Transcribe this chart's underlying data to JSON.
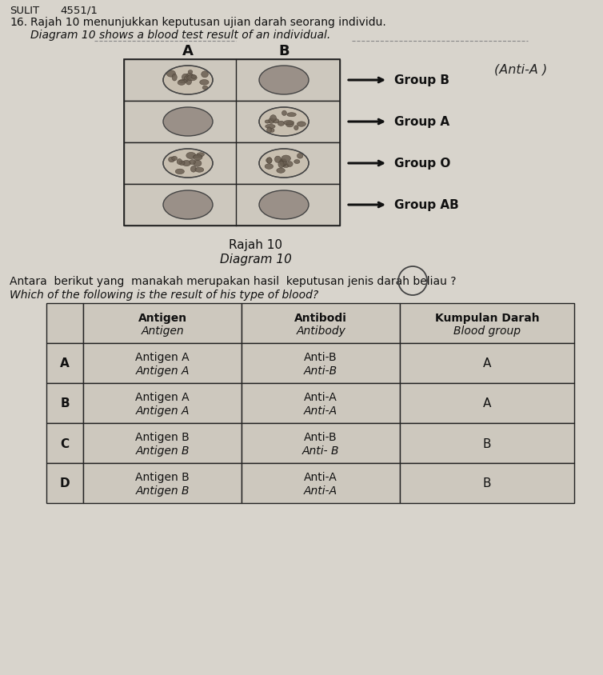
{
  "title_left": "SULIT",
  "title_right": "4551/1",
  "q_number": "16.",
  "q_malay": "Rajah 10 menunjukkan keputusan ujian darah seorang individu.",
  "q_english": "Diagram 10 shows a blood test result of an individual.",
  "col_A_label": "A",
  "col_B_label": "B",
  "diagram_rows": [
    {
      "a_clumped": true,
      "b_clumped": false,
      "label": "Group B"
    },
    {
      "a_clumped": false,
      "b_clumped": true,
      "label": "Group A"
    },
    {
      "a_clumped": true,
      "b_clumped": true,
      "label": "Group O"
    },
    {
      "a_clumped": false,
      "b_clumped": false,
      "label": "Group AB"
    }
  ],
  "diagram_caption1": "Rajah 10",
  "diagram_caption2": "Diagram 10",
  "handwritten_note": "(Anti-A )",
  "q_malay2": "Antara  berikut yang  manakah merupakan hasil  keputusan jenis darah beliau ?",
  "q_english2": "Which of the following is the result of his type of blood?",
  "table_rows": [
    {
      "opt": "A",
      "antigen_r": "Antigen A",
      "antigen_i": "Antigen A",
      "antibody_r": "Anti-B",
      "antibody_i": "Anti-B",
      "blood": "A"
    },
    {
      "opt": "B",
      "antigen_r": "Antigen A",
      "antigen_i": "Antigen A",
      "antibody_r": "Anti-A",
      "antibody_i": "Anti-A",
      "blood": "A"
    },
    {
      "opt": "C",
      "antigen_r": "Antigen B",
      "antigen_i": "Antigen B",
      "antibody_r": "Anti-B",
      "antibody_i": "Anti- B",
      "blood": "B"
    },
    {
      "opt": "D",
      "antigen_r": "Antigen B",
      "antigen_i": "Antigen B",
      "antibody_r": "Anti-A",
      "antibody_i": "Anti-A",
      "blood": "B"
    }
  ],
  "bg_color": "#d8d4cc",
  "text_color": "#111111",
  "line_color": "#222222"
}
